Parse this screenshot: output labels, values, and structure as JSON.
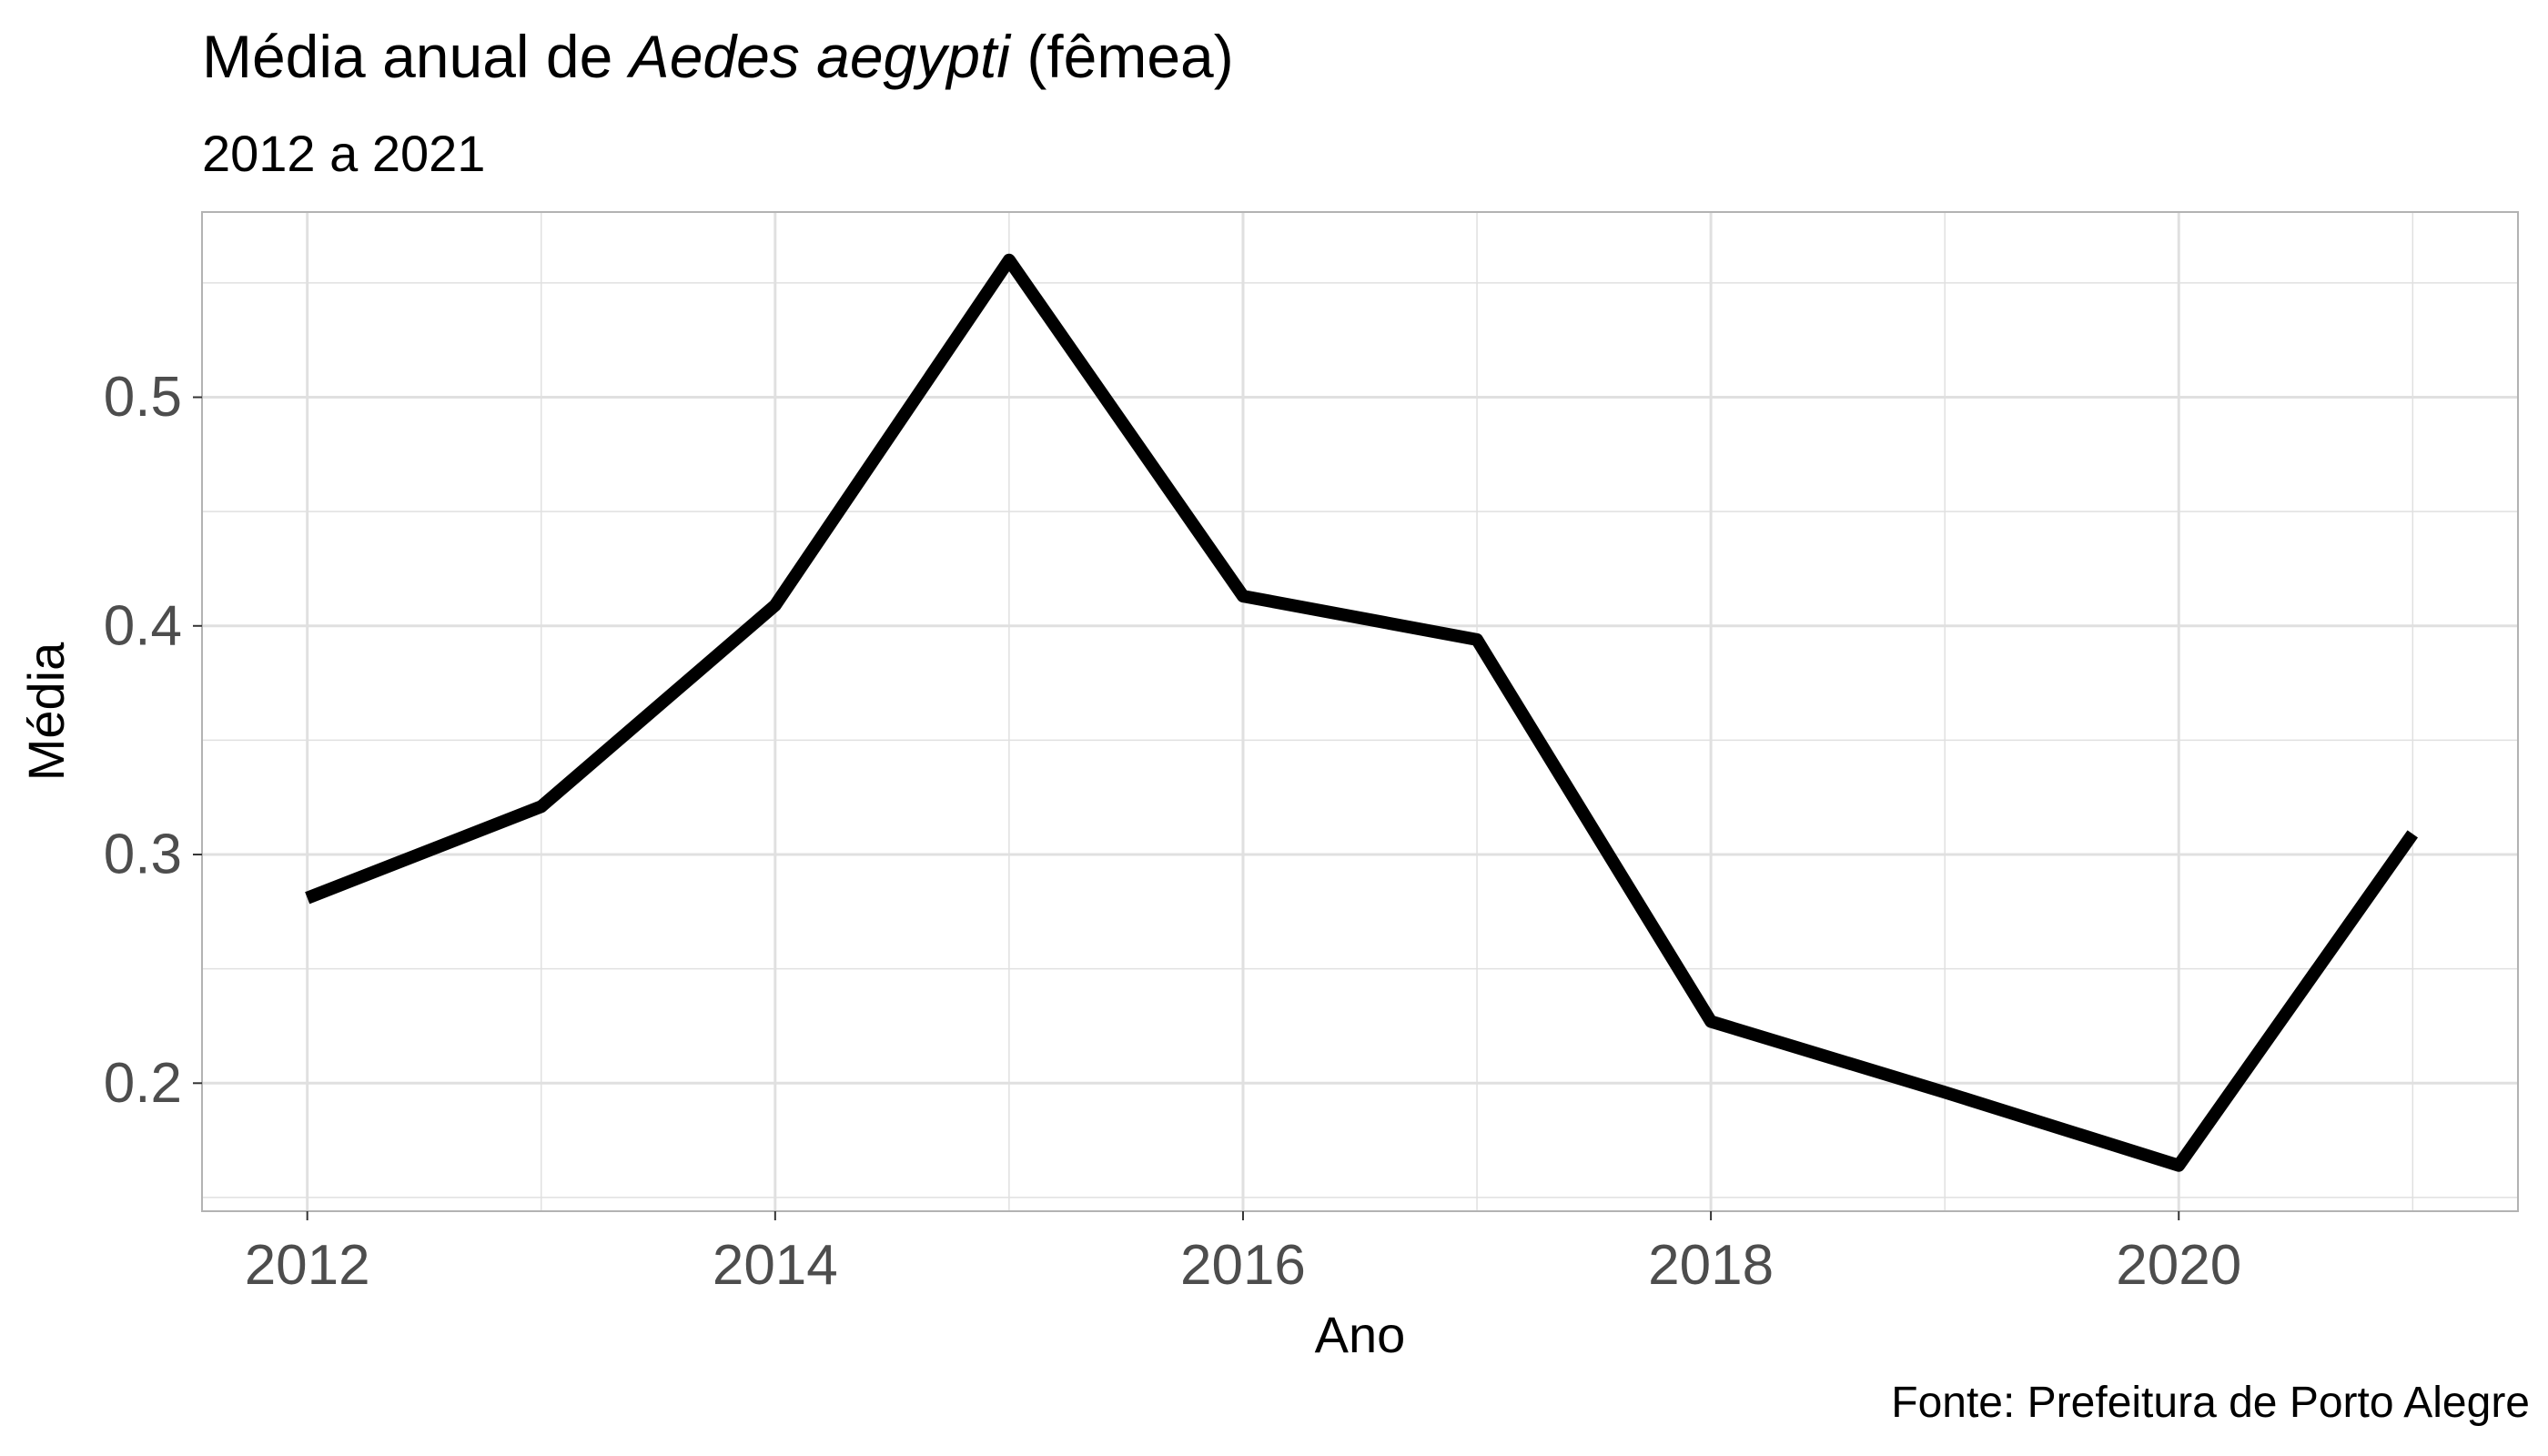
{
  "header": {
    "title_prefix": "Média anual de ",
    "title_species": "Aedes aegypti",
    "title_suffix": " (fêmea)",
    "subtitle": "2012 a 2021",
    "caption": "Fonte: Prefeitura de Porto Alegre"
  },
  "chart_data": {
    "type": "line",
    "title": "Média anual de Aedes aegypti (fêmea)",
    "subtitle": "2012 a 2021",
    "xlabel": "Ano",
    "ylabel": "Média",
    "caption": "Fonte: Prefeitura de Porto Alegre",
    "x": [
      2012,
      2013,
      2014,
      2015,
      2016,
      2017,
      2018,
      2019,
      2020,
      2021
    ],
    "series": [
      {
        "values": [
          0.281,
          0.321,
          0.409,
          0.56,
          0.413,
          0.394,
          0.227,
          0.196,
          0.164,
          0.309
        ]
      }
    ],
    "xlim": [
      2011.55,
      2021.45
    ],
    "ylim": [
      0.144,
      0.581
    ],
    "xticks": [
      2012,
      2014,
      2016,
      2018,
      2020
    ],
    "xtick_labels": [
      "2012",
      "2014",
      "2016",
      "2018",
      "2020"
    ],
    "yticks": [
      0.2,
      0.3,
      0.4,
      0.5
    ],
    "ytick_labels": [
      "0.2",
      "0.3",
      "0.4",
      "0.5"
    ],
    "grid": true,
    "line_color": "#000000",
    "grid_color": "#e0e0e0",
    "panel_border_color": "#b3b3b3",
    "tick_label_color": "#4d4d4d"
  }
}
